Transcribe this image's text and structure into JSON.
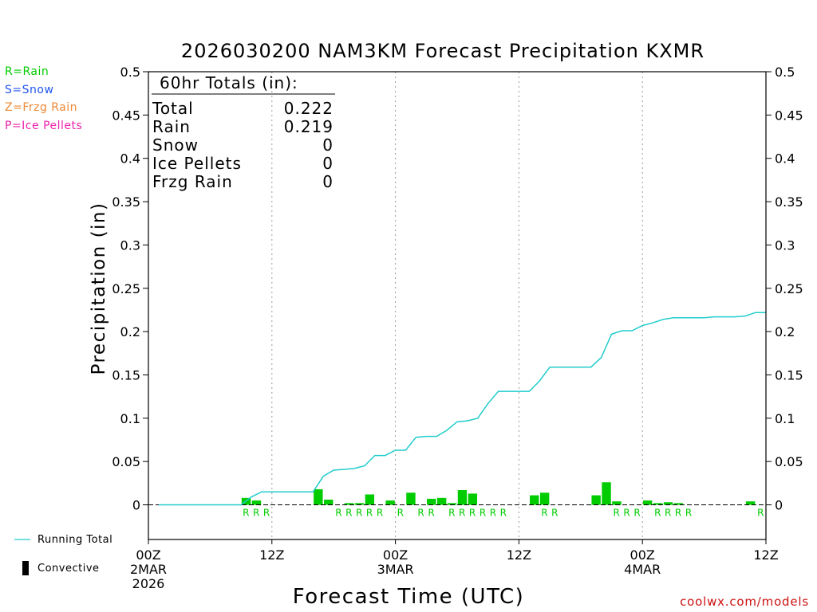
{
  "chart_data": {
    "type": "bar",
    "title": "2026030200 NAM3KM Forecast Precipitation KXMR",
    "xlabel": "Forecast Time (UTC)",
    "ylabel": "Precipitation (in)",
    "ylim": [
      -0.04,
      0.5
    ],
    "xlim": [
      0,
      60
    ],
    "grid": "vertical dotted at 12-hour ticks",
    "y_ticks": [
      0,
      0.05,
      0.1,
      0.15,
      0.2,
      0.25,
      0.3,
      0.35,
      0.4,
      0.45,
      0.5
    ],
    "y_tick_labels": [
      "0",
      "0.05",
      "0.1",
      "0.15",
      "0.2",
      "0.25",
      "0.3",
      "0.35",
      "0.4",
      "0.45",
      "0.5"
    ],
    "x_ticks": [
      {
        "hour": 0,
        "label": "00Z",
        "date": "2MAR",
        "year": "2026"
      },
      {
        "hour": 12,
        "label": "12Z",
        "date": "",
        "year": ""
      },
      {
        "hour": 24,
        "label": "00Z",
        "date": "3MAR",
        "year": ""
      },
      {
        "hour": 36,
        "label": "12Z",
        "date": "",
        "year": ""
      },
      {
        "hour": 48,
        "label": "00Z",
        "date": "4MAR",
        "year": ""
      },
      {
        "hour": 60,
        "label": "12Z",
        "date": "",
        "year": ""
      }
    ],
    "hourly_precip_hours": [
      10,
      11,
      17,
      18,
      20,
      21,
      22,
      24,
      26,
      28,
      29,
      30,
      31,
      32,
      33,
      38,
      39,
      44,
      45,
      46,
      49,
      50,
      51,
      52,
      59
    ],
    "hourly_precip_in": [
      0.008,
      0.005,
      0.018,
      0.006,
      0.002,
      0.002,
      0.012,
      0.005,
      0.014,
      0.007,
      0.008,
      0.002,
      0.017,
      0.013,
      0.0,
      0.011,
      0.014,
      0.011,
      0.026,
      0.004,
      0.005,
      0.002,
      0.003,
      0.002,
      0.004
    ],
    "ptype_markers": [
      {
        "hour": 9.5,
        "label": "R"
      },
      {
        "hour": 10.5,
        "label": "R"
      },
      {
        "hour": 11.5,
        "label": "R"
      },
      {
        "hour": 18.5,
        "label": "R"
      },
      {
        "hour": 19.5,
        "label": "R"
      },
      {
        "hour": 20.5,
        "label": "R"
      },
      {
        "hour": 21.5,
        "label": "R"
      },
      {
        "hour": 22.5,
        "label": "R"
      },
      {
        "hour": 24.5,
        "label": "R"
      },
      {
        "hour": 26.5,
        "label": "R"
      },
      {
        "hour": 27.5,
        "label": "R"
      },
      {
        "hour": 29.5,
        "label": "R"
      },
      {
        "hour": 30.5,
        "label": "R"
      },
      {
        "hour": 31.5,
        "label": "R"
      },
      {
        "hour": 32.5,
        "label": "R"
      },
      {
        "hour": 33.5,
        "label": "R"
      },
      {
        "hour": 34.5,
        "label": "R"
      },
      {
        "hour": 38.5,
        "label": "R"
      },
      {
        "hour": 39.5,
        "label": "R"
      },
      {
        "hour": 45.5,
        "label": "R"
      },
      {
        "hour": 46.5,
        "label": "R"
      },
      {
        "hour": 47.5,
        "label": "R"
      },
      {
        "hour": 49.5,
        "label": "R"
      },
      {
        "hour": 50.5,
        "label": "R"
      },
      {
        "hour": 51.5,
        "label": "R"
      },
      {
        "hour": 52.5,
        "label": "R"
      },
      {
        "hour": 59.5,
        "label": "R"
      }
    ],
    "running_total": {
      "name": "Running Total",
      "hours": [
        1,
        2,
        3,
        4,
        5,
        6,
        7,
        8,
        9,
        10,
        11,
        12,
        13,
        14,
        15,
        16,
        17,
        18,
        19,
        20,
        21,
        22,
        23,
        24,
        25,
        26,
        27,
        28,
        29,
        30,
        31,
        32,
        33,
        34,
        35,
        36,
        37,
        38,
        39,
        40,
        41,
        42,
        43,
        44,
        45,
        46,
        47,
        48,
        49,
        50,
        51,
        52,
        53,
        54,
        55,
        56,
        57,
        58,
        59,
        60
      ],
      "values": [
        0,
        0,
        0,
        0,
        0,
        0,
        0,
        0,
        0,
        0.009,
        0.015,
        0.015,
        0.015,
        0.015,
        0.015,
        0.015,
        0.033,
        0.04,
        0.041,
        0.042,
        0.045,
        0.057,
        0.057,
        0.063,
        0.063,
        0.078,
        0.079,
        0.079,
        0.086,
        0.096,
        0.097,
        0.1,
        0.117,
        0.131,
        0.131,
        0.131,
        0.131,
        0.143,
        0.159,
        0.159,
        0.159,
        0.159,
        0.159,
        0.17,
        0.197,
        0.201,
        0.201,
        0.207,
        0.21,
        0.214,
        0.216,
        0.216,
        0.216,
        0.216,
        0.217,
        0.217,
        0.217,
        0.218,
        0.222,
        0.222
      ]
    },
    "colors": {
      "rain": "#00cc00",
      "snow": "#2255ee",
      "frzg_rain": "#ee8833",
      "ice_pellets": "#ee22aa",
      "running_total": "#22cccc",
      "convective": "#000000",
      "grid": "#999999"
    }
  },
  "ptype_legend": {
    "rain": "R=Rain",
    "snow": "S=Snow",
    "frzg_rain": "Z=Frzg Rain",
    "ice_pellets": "P=Ice Pellets"
  },
  "totals_box": {
    "header": "60hr Totals (in):",
    "rows": [
      {
        "label": "Total",
        "value": "0.222"
      },
      {
        "label": "Rain",
        "value": "0.219"
      },
      {
        "label": "Snow",
        "value": "0"
      },
      {
        "label": "Ice Pellets",
        "value": "0"
      },
      {
        "label": "Frzg Rain",
        "value": "0"
      }
    ]
  },
  "bottom_legend": {
    "running_total": "Running Total",
    "convective": "Convective"
  },
  "credit": "coolwx.com/models"
}
